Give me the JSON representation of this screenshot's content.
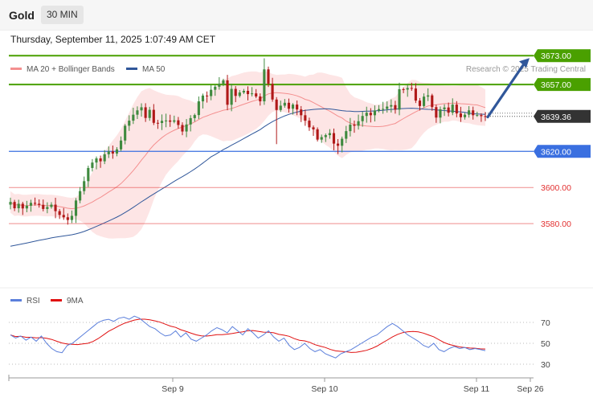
{
  "header": {
    "instrument": "Gold",
    "interval": "30 MIN",
    "datetime": "Thursday, September 11, 2025 1:07:49 AM CET",
    "credit": "Research © 2025 Trading Central"
  },
  "legend": {
    "main": [
      {
        "label": "MA 20 + Bollinger Bands",
        "color": "#f48f8f"
      },
      {
        "label": "MA 50",
        "color": "#30579a"
      }
    ],
    "rsi": [
      {
        "label": "RSI",
        "color": "#5b7fdb"
      },
      {
        "label": "9MA",
        "color": "#e01010"
      }
    ]
  },
  "colors": {
    "up": "#3f8a3f",
    "down": "#b01818",
    "resistance": "#4aa000",
    "support": "#3a6fe0",
    "pivot_target": "#e23030",
    "arrow": "#30579a",
    "band_fill": "#fde0e0",
    "last_price": "#333333"
  },
  "chart_data": [
    {
      "type": "candlestick",
      "y_range": [
        3548,
        3686
      ],
      "x_ticks": [
        "Sep 9",
        "Sep 10",
        "Sep 11",
        "Sep 26"
      ],
      "last_price": 3639.36,
      "levels": [
        {
          "label": "3673.00",
          "value": 3673.0,
          "kind": "resistance"
        },
        {
          "label": "3657.00",
          "value": 3657.0,
          "kind": "resistance"
        },
        {
          "label": "3620.00",
          "value": 3620.0,
          "kind": "support"
        },
        {
          "label": "3600.00",
          "value": 3600.0,
          "kind": "target"
        },
        {
          "label": "3580.00",
          "value": 3580.0,
          "kind": "target"
        }
      ],
      "last_price_label": "3639.36",
      "forecast_arrow": {
        "from": 3639.0,
        "to": 3673.0,
        "direction": "up"
      },
      "closes": [
        3592.0,
        3588.5,
        3591.0,
        3588.4,
        3589.9,
        3591.5,
        3591.0,
        3590.4,
        3588.1,
        3589.2,
        3590.5,
        3586.9,
        3584.8,
        3583.5,
        3582.0,
        3584.3,
        3592.8,
        3598.0,
        3603.5,
        3610.8,
        3613.8,
        3616.1,
        3614.5,
        3618.4,
        3620.0,
        3618.8,
        3621.1,
        3626.0,
        3634.2,
        3637.0,
        3640.3,
        3642.7,
        3644.4,
        3638.5,
        3643.0,
        3635.8,
        3635.7,
        3636.9,
        3637.1,
        3636.4,
        3637.2,
        3634.6,
        3631.0,
        3634.9,
        3638.4,
        3640.1,
        3647.7,
        3650.9,
        3650.6,
        3654.1,
        3655.8,
        3657.4,
        3659.3,
        3645.8,
        3654.6,
        3650.7,
        3652.6,
        3653.5,
        3651.7,
        3652.1,
        3650.4,
        3647.7,
        3665.4,
        3657.4,
        3648.7,
        3642.9,
        3645.3,
        3646.9,
        3643.6,
        3645.9,
        3643.2,
        3640.0,
        3637.0,
        3633.3,
        3632.2,
        3626.5,
        3627.9,
        3629.0,
        3630.1,
        3624.3,
        3623.1,
        3627.0,
        3631.2,
        3634.8,
        3634.2,
        3636.7,
        3639.6,
        3641.4,
        3640.0,
        3642.6,
        3643.4,
        3643.5,
        3644.8,
        3645.6,
        3643.1,
        3654.4,
        3654.2,
        3655.1,
        3654.8,
        3648.1,
        3645.1,
        3650.3,
        3651.0,
        3644.5,
        3638.7,
        3643.3,
        3644.3,
        3641.4,
        3645.9,
        3641.0,
        3638.9,
        3640.3,
        3642.7,
        3640.0,
        3640.1,
        3639.5,
        3639.36
      ],
      "ma50_start": 3567.0,
      "rsi_pane": {
        "y_ticks": [
          70,
          50,
          30
        ],
        "y_range": [
          20,
          80
        ],
        "rsi": [
          58,
          55,
          57,
          53,
          56,
          52,
          57,
          50,
          45,
          42,
          41,
          48,
          50,
          54,
          58,
          62,
          66,
          70,
          72,
          73,
          71,
          74,
          75,
          73,
          76,
          74,
          70,
          66,
          64,
          60,
          57,
          58,
          62,
          56,
          60,
          54,
          52,
          55,
          58,
          62,
          65,
          63,
          60,
          66,
          62,
          58,
          64,
          60,
          55,
          58,
          62,
          56,
          52,
          55,
          48,
          44,
          46,
          50,
          45,
          42,
          44,
          40,
          38,
          36,
          40,
          42,
          44,
          47,
          50,
          53,
          56,
          58,
          62,
          66,
          69,
          66,
          62,
          58,
          55,
          52,
          48,
          46,
          50,
          44,
          42,
          45,
          47,
          45,
          46,
          44,
          45,
          44,
          43
        ]
      }
    }
  ]
}
